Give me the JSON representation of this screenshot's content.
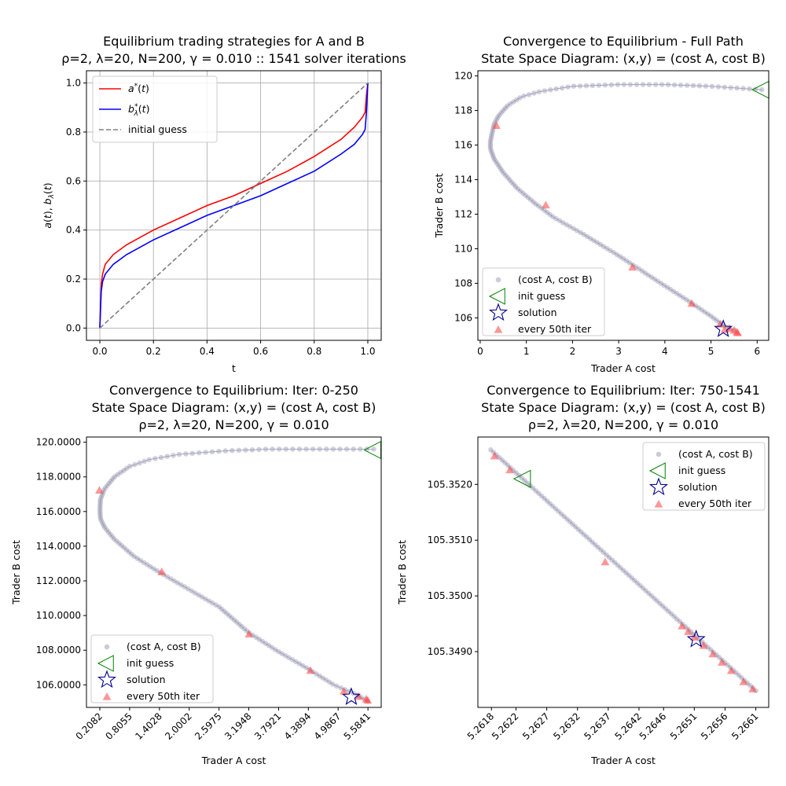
{
  "chart_data": [
    {
      "id": "p1",
      "type": "line",
      "title": [
        "Equilibrium trading strategies for A and B",
        "ρ=2, λ=20, N=200, γ = 0.010 :: 1541 solver iterations"
      ],
      "xlabel": "t",
      "ylabel": "a(t), b_λ(t)",
      "xlim": [
        -0.05,
        1.05
      ],
      "ylim": [
        -0.05,
        1.05
      ],
      "xticks": [
        0.0,
        0.2,
        0.4,
        0.6,
        0.8,
        1.0
      ],
      "yticks": [
        0.0,
        0.2,
        0.4,
        0.6,
        0.8,
        1.0
      ],
      "xtick_labels": [
        "0.0",
        "0.2",
        "0.4",
        "0.6",
        "0.8",
        "1.0"
      ],
      "ytick_labels": [
        "0.0",
        "0.2",
        "0.4",
        "0.6",
        "0.8",
        "1.0"
      ],
      "grid": true,
      "legend": "top-left",
      "series": [
        {
          "name": "a*(t)",
          "color": "#ff0000",
          "style": "solid",
          "x": [
            0,
            0.005,
            0.01,
            0.02,
            0.05,
            0.1,
            0.2,
            0.3,
            0.4,
            0.5,
            0.6,
            0.7,
            0.8,
            0.9,
            0.95,
            0.98,
            0.99,
            0.995,
            1.0
          ],
          "y": [
            0,
            0.18,
            0.22,
            0.26,
            0.3,
            0.34,
            0.4,
            0.45,
            0.5,
            0.54,
            0.59,
            0.64,
            0.7,
            0.77,
            0.82,
            0.86,
            0.88,
            0.95,
            1.0
          ]
        },
        {
          "name": "b*_λ(t)",
          "color": "#0000ff",
          "style": "solid",
          "x": [
            0,
            0.005,
            0.01,
            0.02,
            0.05,
            0.1,
            0.2,
            0.3,
            0.4,
            0.5,
            0.6,
            0.7,
            0.8,
            0.9,
            0.95,
            0.98,
            0.99,
            0.995,
            1.0
          ],
          "y": [
            0,
            0.15,
            0.19,
            0.22,
            0.26,
            0.3,
            0.36,
            0.41,
            0.46,
            0.5,
            0.54,
            0.59,
            0.64,
            0.71,
            0.75,
            0.79,
            0.81,
            0.88,
            1.0
          ]
        },
        {
          "name": "initial guess",
          "color": "#808080",
          "style": "dashed",
          "x": [
            0,
            1
          ],
          "y": [
            0,
            1
          ]
        }
      ]
    },
    {
      "id": "p2",
      "type": "scatter",
      "title": [
        "Convergence to Equilibrium - Full Path",
        "State Space Diagram: (x,y) = (cost A, cost B)"
      ],
      "xlabel": "Trader A cost",
      "ylabel": "Trader B cost",
      "xlim": [
        -0.05,
        6.25
      ],
      "ylim": [
        104.7,
        120.3
      ],
      "xticks": [
        0,
        1,
        2,
        3,
        4,
        5,
        6
      ],
      "yticks": [
        106,
        108,
        110,
        112,
        114,
        116,
        118,
        120
      ],
      "xtick_labels": [
        "0",
        "1",
        "2",
        "3",
        "4",
        "5",
        "6"
      ],
      "ytick_labels": [
        "106",
        "108",
        "110",
        "112",
        "114",
        "116",
        "118",
        "120"
      ],
      "grid": false,
      "legend": "bottom-left",
      "legend_entries": [
        "(cost A, cost B)",
        "init guess",
        "solution",
        "every 50th iter"
      ],
      "path": {
        "x": [
          6.1,
          5.0,
          4.0,
          3.0,
          2.0,
          1.3,
          0.9,
          0.6,
          0.4,
          0.3,
          0.25,
          0.22,
          0.22,
          0.3,
          0.5,
          0.8,
          1.2,
          1.6,
          2.2,
          3.0,
          3.8,
          4.5,
          5.0,
          5.3,
          5.5
        ],
        "y": [
          119.2,
          119.4,
          119.5,
          119.5,
          119.4,
          119.1,
          118.8,
          118.3,
          117.7,
          117.2,
          116.6,
          116.2,
          115.8,
          115.2,
          114.4,
          113.5,
          112.6,
          111.8,
          110.9,
          109.6,
          108.2,
          107.0,
          106.1,
          105.5,
          105.3
        ]
      },
      "init_guess": [
        6.1,
        119.2
      ],
      "solution": [
        5.265,
        105.35
      ],
      "every_50th": {
        "x": [
          0.35,
          1.42,
          3.3,
          4.58,
          5.2,
          5.4,
          5.5,
          5.56,
          5.58,
          5.3
        ],
        "y": [
          117.1,
          112.5,
          108.9,
          106.8,
          105.6,
          105.35,
          105.25,
          105.15,
          105.1,
          105.3
        ]
      }
    },
    {
      "id": "p3",
      "type": "scatter",
      "title": [
        "Convergence to Equilibrium: Iter: 0-250",
        "State Space Diagram: (x,y) = (cost A, cost B)",
        "ρ=2, λ=20, N=200, γ = 0.010"
      ],
      "xlabel": "Trader A cost",
      "ylabel": "Trader B cost",
      "xlim": [
        -0.06,
        5.85
      ],
      "ylim": [
        104.7,
        120.3
      ],
      "xticks": [
        0.2082,
        0.8055,
        1.4028,
        2.0002,
        2.5975,
        3.1948,
        3.7921,
        4.3894,
        4.9867,
        5.5841
      ],
      "yticks": [
        106,
        108,
        110,
        112,
        114,
        116,
        118,
        120
      ],
      "xtick_labels": [
        "0.2082",
        "0.8055",
        "1.4028",
        "2.0002",
        "2.5975",
        "3.1948",
        "3.7921",
        "4.3894",
        "4.9867",
        "5.5841"
      ],
      "ytick_labels": [
        "106.0000",
        "108.0000",
        "110.0000",
        "112.0000",
        "114.0000",
        "116.0000",
        "118.0000",
        "120.0000"
      ],
      "grid": false,
      "legend": "bottom-left",
      "legend_entries": [
        "(cost A, cost B)",
        "init guess",
        "solution",
        "every 50th iter"
      ],
      "path": {
        "x": [
          5.7,
          4.6,
          3.6,
          2.7,
          1.8,
          1.2,
          0.8,
          0.5,
          0.3,
          0.22,
          0.21,
          0.22,
          0.3,
          0.5,
          0.9,
          1.4,
          2.0,
          2.6,
          3.2,
          3.8,
          4.4,
          4.9,
          5.3,
          5.5,
          5.58
        ],
        "y": [
          119.6,
          119.6,
          119.6,
          119.5,
          119.3,
          119.0,
          118.6,
          118.0,
          117.3,
          116.7,
          116.1,
          115.6,
          115.1,
          114.4,
          113.4,
          112.5,
          111.5,
          110.5,
          109.0,
          107.9,
          106.9,
          106.0,
          105.5,
          105.2,
          105.05
        ]
      },
      "init_guess": [
        5.7,
        119.55
      ],
      "solution": [
        5.25,
        105.3
      ],
      "every_50th": {
        "x": [
          0.2,
          1.45,
          3.2,
          4.43,
          5.1,
          5.4,
          5.55,
          5.58
        ],
        "y": [
          117.2,
          112.5,
          108.9,
          106.8,
          105.6,
          105.3,
          105.15,
          105.08
        ]
      }
    },
    {
      "id": "p4",
      "type": "scatter",
      "title": [
        "Convergence to Equilibrium: Iter: 750-1541",
        "State Space Diagram: (x,y) = (cost A, cost B)",
        "ρ=2, λ=20, N=200, γ = 0.010"
      ],
      "xlabel": "Trader A cost",
      "ylabel": "Trader B cost",
      "xlim": [
        5.26158,
        5.26631
      ],
      "ylim": [
        105.348,
        105.35285
      ],
      "xticks": [
        5.2618,
        5.2622,
        5.2627,
        5.2632,
        5.2637,
        5.2642,
        5.2646,
        5.2651,
        5.2656,
        5.2661
      ],
      "yticks": [
        105.349,
        105.35,
        105.351,
        105.352
      ],
      "xtick_labels": [
        "5.2618",
        "5.2622",
        "5.2627",
        "5.2632",
        "5.2637",
        "5.2642",
        "5.2646",
        "5.2651",
        "5.2656",
        "5.2661"
      ],
      "ytick_labels": [
        "105.3490",
        "105.3500",
        "105.3510",
        "105.3520"
      ],
      "grid": false,
      "legend": "top-right",
      "legend_entries": [
        "(cost A, cost B)",
        "init guess",
        "solution",
        "every 50th iter"
      ],
      "path": {
        "x": [
          5.26179,
          5.2661
        ],
        "y": [
          105.35262,
          105.3483
        ]
      },
      "init_guess": [
        5.26232,
        105.3521
      ],
      "solution": [
        5.26513,
        105.34922
      ],
      "every_50th": {
        "x": [
          5.26185,
          5.2621,
          5.26365,
          5.2649,
          5.265,
          5.2651,
          5.26525,
          5.2654,
          5.26555,
          5.2657,
          5.2659,
          5.26605
        ],
        "y": [
          105.3525,
          105.35225,
          105.3506,
          105.34945,
          105.34935,
          105.34925,
          105.3491,
          105.34895,
          105.3488,
          105.34865,
          105.34845,
          105.34832
        ]
      }
    }
  ]
}
